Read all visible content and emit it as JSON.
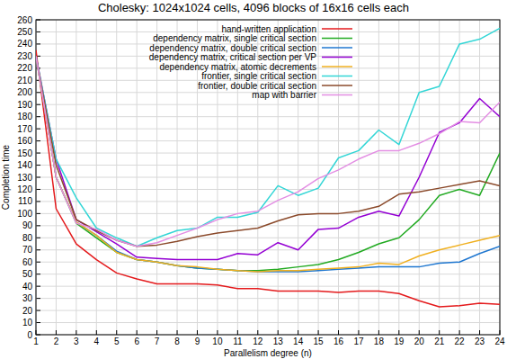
{
  "chart_data": {
    "type": "line",
    "title": "Cholesky: 1024x1024 cells, 4096 blocks of 16x16 cells each",
    "x_label": "Parallelism degree (n)",
    "y_label": "Completion time",
    "x": [
      1,
      2,
      3,
      4,
      5,
      6,
      7,
      8,
      9,
      10,
      11,
      12,
      13,
      14,
      15,
      16,
      17,
      18,
      19,
      20,
      21,
      22,
      23,
      24
    ],
    "xlim": [
      1,
      24
    ],
    "xticks": [
      1,
      2,
      3,
      4,
      5,
      6,
      7,
      8,
      9,
      10,
      11,
      12,
      13,
      14,
      15,
      16,
      17,
      18,
      19,
      20,
      21,
      22,
      23,
      24
    ],
    "ylim": [
      0,
      260
    ],
    "yticks": [
      0,
      10,
      20,
      30,
      40,
      50,
      60,
      70,
      80,
      90,
      100,
      110,
      120,
      130,
      140,
      150,
      160,
      170,
      180,
      190,
      200,
      210,
      220,
      230,
      240,
      250,
      260
    ],
    "grid": true,
    "legend": "top",
    "series": [
      {
        "name": "hand-written application",
        "color": "#e41a1c",
        "values": [
          235,
          104,
          75,
          62,
          51,
          46,
          42,
          42,
          42,
          41,
          38,
          38,
          36,
          36,
          36,
          35,
          36,
          36,
          34,
          28,
          23,
          24,
          26,
          25
        ]
      },
      {
        "name": "dependency matrix, single critical section",
        "color": "#22aa22",
        "values": [
          230,
          130,
          92,
          80,
          68,
          62,
          60,
          57,
          55,
          54,
          53,
          53,
          54,
          56,
          58,
          62,
          68,
          75,
          80,
          95,
          115,
          120,
          115,
          150
        ]
      },
      {
        "name": "dependency matrix, double critical section",
        "color": "#1f77d0",
        "values": [
          230,
          130,
          93,
          82,
          69,
          62,
          60,
          57,
          55,
          54,
          53,
          52,
          52,
          52,
          53,
          54,
          55,
          56,
          56,
          56,
          59,
          60,
          67,
          73
        ]
      },
      {
        "name": "dependency matrix, critical section per VP",
        "color": "#9400d3",
        "values": [
          230,
          145,
          95,
          85,
          75,
          64,
          63,
          62,
          62,
          62,
          67,
          66,
          76,
          70,
          87,
          88,
          97,
          102,
          98,
          130,
          167,
          175,
          195,
          180
        ]
      },
      {
        "name": "dependency matrix, atomic decrements",
        "color": "#f0b020",
        "values": [
          230,
          130,
          93,
          82,
          68,
          62,
          60,
          57,
          56,
          54,
          53,
          52,
          53,
          53,
          54,
          55,
          56,
          59,
          58,
          65,
          70,
          74,
          78,
          82
        ]
      },
      {
        "name": "frontier, single critical section",
        "color": "#33d6d6",
        "values": [
          230,
          145,
          113,
          88,
          80,
          73,
          80,
          86,
          88,
          97,
          97,
          101,
          123,
          115,
          121,
          146,
          152,
          169,
          157,
          200,
          205,
          240,
          244,
          253
        ]
      },
      {
        "name": "frontier, double critical section",
        "color": "#8b4a2b",
        "values": [
          230,
          140,
          95,
          86,
          78,
          73,
          74,
          77,
          81,
          84,
          86,
          88,
          94,
          99,
          100,
          100,
          102,
          106,
          116,
          118,
          121,
          124,
          127,
          123
        ]
      },
      {
        "name": "map with barrier",
        "color": "#e38ee3",
        "values": [
          230,
          130,
          92,
          87,
          78,
          73,
          76,
          82,
          88,
          95,
          100,
          102,
          111,
          118,
          129,
          136,
          145,
          152,
          152,
          158,
          166,
          176,
          175,
          192
        ]
      }
    ]
  }
}
